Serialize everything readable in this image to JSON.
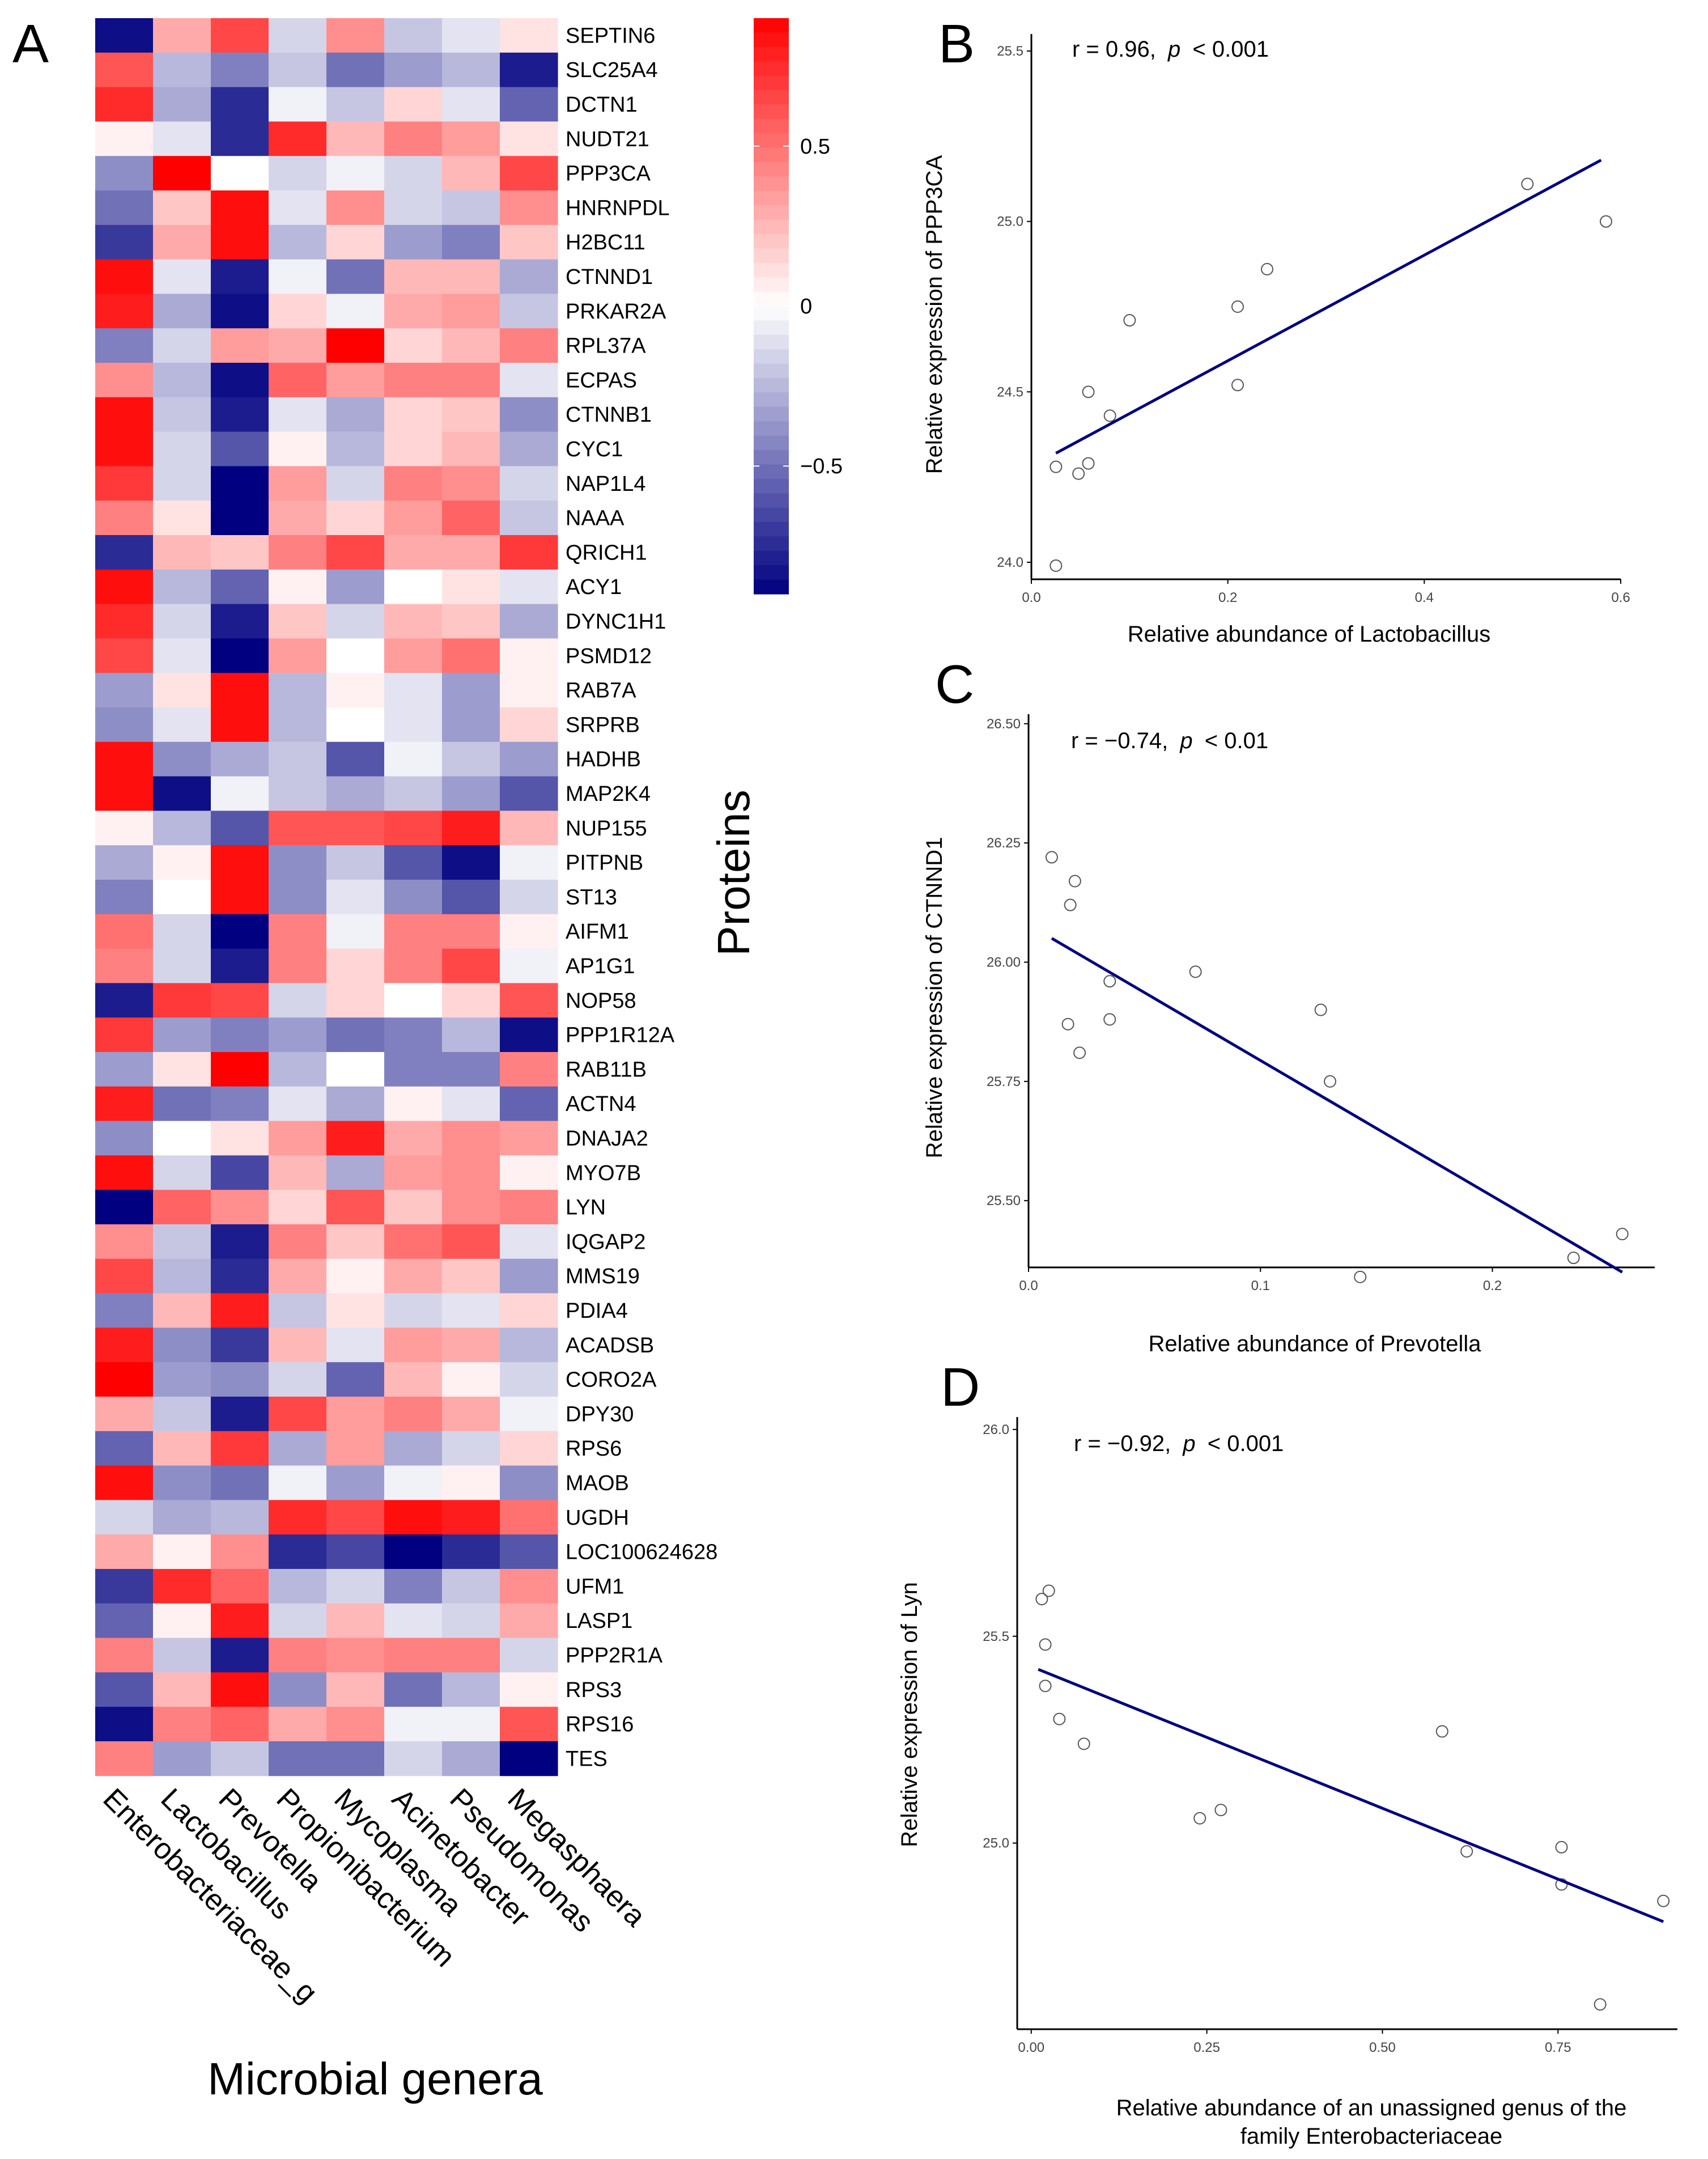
{
  "panels": {
    "a": "A",
    "b": "B",
    "c": "C",
    "d": "D"
  },
  "colors": {
    "high": "#ff0000",
    "mid": "#ffffff",
    "low": "#000080",
    "line": "#000080",
    "axis": "#000000",
    "point": "#555555"
  },
  "chart_data": [
    {
      "type": "heatmap",
      "title": "",
      "ylabel": "Proteins",
      "xlabel": "Microbial genera",
      "columns": [
        "Enterobacteriaceae_g",
        "Lactobacillus",
        "Prevotella",
        "Propionibacterium",
        "Mycoplasma",
        "Acinetobacter",
        "Pseudomonas",
        "Megasphaera"
      ],
      "rows": [
        "SEPTIN6",
        "SLC25A4",
        "DCTN1",
        "NUDT21",
        "PPP3CA",
        "HNRNPDL",
        "H2BC11",
        "CTNND1",
        "PRKAR2A",
        "RPL37A",
        "ECPAS",
        "CTNNB1",
        "CYC1",
        "NAP1L4",
        "NAAA",
        "QRICH1",
        "ACY1",
        "DYNC1H1",
        "PSMD12",
        "RAB7A",
        "SRPRB",
        "HADHB",
        "MAP2K4",
        "NUP155",
        "PITPNB",
        "ST13",
        "AIFM1",
        "AP1G1",
        "NOP58",
        "PPP1R12A",
        "RAB11B",
        "ACTN4",
        "DNAJA2",
        "MYO7B",
        "LYN",
        "IQGAP2",
        "MMS19",
        "PDIA4",
        "ACADSB",
        "CORO2A",
        "DPY30",
        "RPS6",
        "MAOB",
        "UGDH",
        "LOC100624628",
        "UFM1",
        "LASP1",
        "PPP2R1A",
        "RPS3",
        "RPS16",
        "TES"
      ],
      "values": [
        [
          -0.85,
          0.3,
          0.65,
          -0.15,
          0.4,
          -0.2,
          -0.1,
          0.1
        ],
        [
          0.6,
          -0.25,
          -0.45,
          -0.2,
          -0.5,
          -0.35,
          -0.25,
          -0.8
        ],
        [
          0.75,
          -0.3,
          -0.75,
          -0.05,
          -0.2,
          0.15,
          -0.1,
          -0.55
        ],
        [
          0.05,
          -0.1,
          -0.75,
          0.75,
          0.25,
          0.45,
          0.35,
          0.1
        ],
        [
          -0.4,
          0.9,
          0.0,
          -0.15,
          -0.05,
          -0.15,
          0.25,
          0.65
        ],
        [
          -0.5,
          0.2,
          0.85,
          -0.1,
          0.4,
          -0.15,
          -0.2,
          0.4
        ],
        [
          -0.7,
          0.3,
          0.85,
          -0.25,
          0.15,
          -0.35,
          -0.45,
          0.2
        ],
        [
          0.85,
          -0.1,
          -0.8,
          -0.05,
          -0.5,
          0.25,
          0.25,
          -0.3
        ],
        [
          0.8,
          -0.3,
          -0.85,
          0.15,
          -0.05,
          0.3,
          0.35,
          -0.2
        ],
        [
          -0.45,
          -0.15,
          0.35,
          0.3,
          0.95,
          0.15,
          0.25,
          0.45
        ],
        [
          0.4,
          -0.25,
          -0.85,
          0.55,
          0.35,
          0.45,
          0.45,
          -0.1
        ],
        [
          0.85,
          -0.2,
          -0.8,
          -0.1,
          -0.3,
          0.15,
          0.2,
          -0.4
        ],
        [
          0.85,
          -0.15,
          -0.6,
          0.05,
          -0.25,
          0.15,
          0.25,
          -0.3
        ],
        [
          0.7,
          -0.15,
          -0.95,
          0.35,
          -0.15,
          0.45,
          0.4,
          -0.15
        ],
        [
          0.45,
          0.1,
          -0.9,
          0.3,
          0.15,
          0.35,
          0.55,
          -0.2
        ],
        [
          -0.75,
          0.25,
          0.2,
          0.45,
          0.65,
          0.3,
          0.3,
          0.7
        ],
        [
          0.85,
          -0.25,
          -0.55,
          0.05,
          -0.35,
          0.0,
          0.1,
          -0.1
        ],
        [
          0.75,
          -0.15,
          -0.8,
          0.2,
          -0.15,
          0.25,
          0.2,
          -0.3
        ],
        [
          0.65,
          -0.1,
          -0.9,
          0.35,
          0.0,
          0.35,
          0.5,
          0.05
        ],
        [
          -0.35,
          0.1,
          0.85,
          -0.25,
          0.05,
          -0.1,
          -0.35,
          0.05
        ],
        [
          -0.4,
          -0.1,
          0.85,
          -0.25,
          0.0,
          -0.1,
          -0.35,
          0.15
        ],
        [
          0.85,
          -0.4,
          -0.3,
          -0.2,
          -0.6,
          -0.05,
          -0.2,
          -0.35
        ],
        [
          0.85,
          -0.85,
          -0.05,
          -0.2,
          -0.3,
          -0.2,
          -0.35,
          -0.6
        ],
        [
          0.05,
          -0.25,
          -0.6,
          0.6,
          0.6,
          0.65,
          0.8,
          0.25
        ],
        [
          -0.3,
          0.05,
          0.85,
          -0.4,
          -0.2,
          -0.6,
          -0.85,
          -0.05
        ],
        [
          -0.45,
          0.0,
          0.85,
          -0.4,
          -0.1,
          -0.4,
          -0.6,
          -0.15
        ],
        [
          0.5,
          -0.15,
          -0.9,
          0.45,
          -0.05,
          0.45,
          0.45,
          0.05
        ],
        [
          0.45,
          -0.15,
          -0.8,
          0.45,
          0.15,
          0.45,
          0.65,
          -0.05
        ],
        [
          -0.8,
          0.7,
          0.65,
          -0.15,
          0.15,
          0.0,
          0.15,
          0.6
        ],
        [
          0.7,
          -0.35,
          -0.45,
          -0.35,
          -0.5,
          -0.45,
          -0.25,
          -0.85
        ],
        [
          -0.35,
          0.1,
          0.95,
          -0.25,
          0.0,
          -0.45,
          -0.45,
          0.45
        ],
        [
          0.8,
          -0.5,
          -0.45,
          -0.1,
          -0.3,
          0.05,
          -0.1,
          -0.55
        ],
        [
          -0.4,
          0.0,
          0.1,
          0.35,
          0.8,
          0.3,
          0.4,
          0.35
        ],
        [
          0.85,
          -0.15,
          -0.65,
          0.25,
          -0.3,
          0.35,
          0.4,
          0.05
        ],
        [
          -0.95,
          0.55,
          0.4,
          0.15,
          0.6,
          0.2,
          0.4,
          0.45
        ],
        [
          0.4,
          -0.2,
          -0.8,
          0.45,
          0.2,
          0.5,
          0.6,
          -0.1
        ],
        [
          0.65,
          -0.25,
          -0.75,
          0.3,
          0.05,
          0.3,
          0.2,
          -0.35
        ],
        [
          -0.45,
          0.25,
          0.8,
          -0.2,
          0.1,
          -0.15,
          -0.1,
          0.15
        ],
        [
          0.8,
          -0.4,
          -0.7,
          0.25,
          -0.1,
          0.35,
          0.3,
          -0.25
        ],
        [
          0.95,
          -0.35,
          -0.4,
          -0.15,
          -0.55,
          0.25,
          0.05,
          -0.15
        ],
        [
          0.3,
          -0.2,
          -0.8,
          0.65,
          0.35,
          0.45,
          0.3,
          -0.05
        ],
        [
          -0.55,
          0.25,
          0.7,
          -0.3,
          0.35,
          -0.3,
          -0.15,
          0.15
        ],
        [
          0.85,
          -0.4,
          -0.5,
          -0.05,
          -0.35,
          -0.05,
          0.05,
          -0.4
        ],
        [
          -0.15,
          -0.3,
          -0.25,
          0.75,
          0.65,
          0.85,
          0.8,
          0.5
        ],
        [
          0.3,
          0.05,
          0.4,
          -0.75,
          -0.65,
          -0.9,
          -0.75,
          -0.6
        ],
        [
          -0.7,
          0.75,
          0.55,
          -0.25,
          -0.15,
          -0.45,
          -0.2,
          0.4
        ],
        [
          -0.55,
          0.05,
          0.8,
          -0.15,
          0.25,
          -0.1,
          -0.15,
          0.3
        ],
        [
          0.45,
          -0.2,
          -0.8,
          0.45,
          0.4,
          0.45,
          0.45,
          -0.15
        ],
        [
          -0.6,
          0.25,
          0.85,
          -0.4,
          0.25,
          -0.5,
          -0.25,
          0.05
        ],
        [
          -0.85,
          0.45,
          0.55,
          0.3,
          0.4,
          -0.05,
          -0.05,
          0.6
        ],
        [
          0.45,
          -0.35,
          -0.2,
          -0.5,
          -0.5,
          -0.15,
          -0.3,
          -0.95
        ]
      ],
      "legend": {
        "ticks": [
          0.5,
          0,
          -0.5
        ],
        "tick_labels": [
          "0.5",
          "0",
          "−0.5"
        ],
        "range": [
          -0.9,
          0.9
        ]
      }
    },
    {
      "type": "scatter",
      "title": "r = 0.96, p < 0.001",
      "annotation": {
        "r_text": "r = 0.96,",
        "p_letter": "p",
        "p_rest": "< 0.001"
      },
      "xlabel": "Relative  abundance  of Lactobacillus",
      "ylabel": "Relative  expression  of PPP3CA",
      "xlim": [
        0,
        0.6
      ],
      "ylim": [
        23.95,
        25.55
      ],
      "xticks": [
        0.0,
        0.2,
        0.4,
        0.6
      ],
      "xtick_labels": [
        "0.0",
        "0.2",
        "0.4",
        "0.6"
      ],
      "yticks": [
        24.0,
        24.5,
        25.0,
        25.5
      ],
      "ytick_labels": [
        "24.0",
        "24.5",
        "25.0",
        "25.5"
      ],
      "points": {
        "x": [
          0.025,
          0.048,
          0.058,
          0.058,
          0.08,
          0.1,
          0.21,
          0.21,
          0.24,
          0.505,
          0.585,
          0.025
        ],
        "y": [
          24.28,
          24.26,
          24.29,
          24.5,
          24.43,
          24.71,
          24.75,
          24.52,
          24.86,
          25.11,
          25.0,
          23.99
        ]
      },
      "fit": {
        "x": [
          0.025,
          0.58
        ],
        "y": [
          24.32,
          25.18
        ]
      }
    },
    {
      "type": "scatter",
      "title": "r = −0.74, p < 0.01",
      "annotation": {
        "r_text": "r = −0.74,",
        "p_letter": "p",
        "p_rest": "< 0.01"
      },
      "xlabel": "Relative  abundance  of Prevotella",
      "ylabel": "Relative  expression  of CTNND1",
      "xlim": [
        0,
        0.27
      ],
      "ylim": [
        25.36,
        26.52
      ],
      "xticks": [
        0.0,
        0.1,
        0.2
      ],
      "xtick_labels": [
        "0.0",
        "0.1",
        "0.2"
      ],
      "yticks": [
        25.5,
        25.75,
        26.0,
        26.25,
        26.5
      ],
      "ytick_labels": [
        "25.50",
        "25.75",
        "26.00",
        "26.25",
        "26.50"
      ],
      "points": {
        "x": [
          0.01,
          0.02,
          0.018,
          0.017,
          0.035,
          0.035,
          0.022,
          0.072,
          0.126,
          0.13,
          0.143,
          0.235,
          0.256
        ],
        "y": [
          26.22,
          26.17,
          26.12,
          25.87,
          25.96,
          25.88,
          25.81,
          25.98,
          25.9,
          25.75,
          25.34,
          25.38,
          25.43
        ]
      },
      "fit": {
        "x": [
          0.01,
          0.256
        ],
        "y": [
          26.05,
          25.35
        ]
      }
    },
    {
      "type": "scatter",
      "title": "r = −0.92, p < 0.001",
      "annotation": {
        "r_text": "r = −0.92,",
        "p_letter": "p",
        "p_rest": "< 0.001"
      },
      "xlabel_line1": "Relative  abundance  of an unassigned  genus of the",
      "xlabel_line2": "family Enterobacteriaceae",
      "ylabel": "Relative  expression of Lyn",
      "xlim": [
        -0.02,
        0.92
      ],
      "ylim": [
        24.55,
        26.03
      ],
      "xticks": [
        0.0,
        0.25,
        0.5,
        0.75
      ],
      "xtick_labels": [
        "0.00",
        "0.25",
        "0.50",
        "0.75"
      ],
      "yticks": [
        25.0,
        25.5,
        26.0
      ],
      "ytick_labels": [
        "25.0",
        "25.5",
        "26.0"
      ],
      "points": {
        "x": [
          0.015,
          0.025,
          0.02,
          0.02,
          0.04,
          0.075,
          0.24,
          0.27,
          0.585,
          0.62,
          0.755,
          0.755,
          0.81,
          0.9
        ],
        "y": [
          25.59,
          25.61,
          25.48,
          25.38,
          25.3,
          25.24,
          25.06,
          25.08,
          25.27,
          24.98,
          24.99,
          24.9,
          24.61,
          24.86
        ]
      },
      "fit": {
        "x": [
          0.01,
          0.9
        ],
        "y": [
          25.42,
          24.81
        ]
      }
    }
  ]
}
